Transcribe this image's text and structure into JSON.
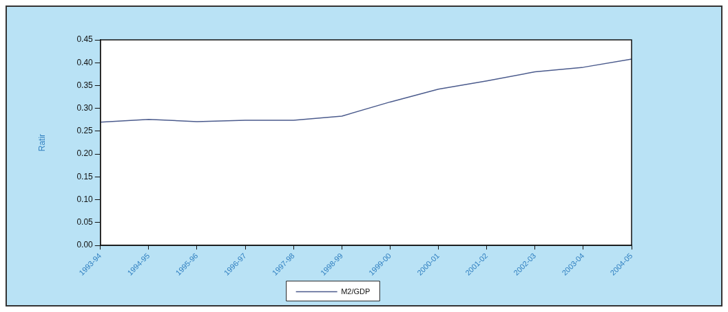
{
  "chart_data": {
    "type": "line",
    "ylabel": "Ratir",
    "categories": [
      "1993-94",
      "1994-95",
      "1995-96",
      "1996-97",
      "1997-98",
      "1998-99",
      "1999-00",
      "2000-01",
      "2001-02",
      "2002-03",
      "2003-04",
      "2004-05"
    ],
    "series": [
      {
        "name": "M2/GDP",
        "color": "#4a5a8c",
        "values": [
          0.27,
          0.276,
          0.271,
          0.274,
          0.274,
          0.283,
          0.314,
          0.342,
          0.36,
          0.38,
          0.39,
          0.408
        ]
      }
    ],
    "ylim": [
      0,
      0.45
    ],
    "yticks": [
      {
        "value": 0,
        "label": "0.00"
      },
      0.05,
      {
        "value": 0.1,
        "label": "0.10"
      },
      0.15,
      {
        "value": 0.2,
        "label": "0.20"
      },
      0.25,
      {
        "value": 0.3,
        "label": "0.30"
      },
      0.35,
      {
        "value": 0.4,
        "label": "0.40"
      },
      0.45
    ],
    "grid": false,
    "legend": "bottom",
    "marker": "none",
    "line_style": "solid"
  }
}
